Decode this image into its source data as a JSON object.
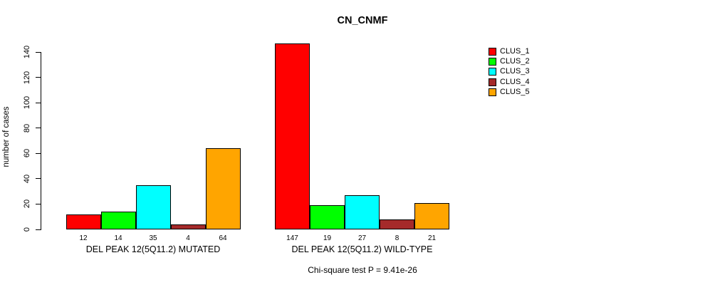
{
  "chart_data": {
    "type": "bar",
    "title": "CN_CNMF",
    "ylabel": "number of cases",
    "xlabel": "",
    "ylim": [
      0,
      140
    ],
    "ytick_step": 20,
    "grid": false,
    "legend_position": "top-right",
    "categories": [
      "DEL PEAK 12(5Q11.2) MUTATED",
      "DEL PEAK 12(5Q11.2) WILD-TYPE"
    ],
    "series": [
      {
        "name": "CLUS_1",
        "color": "#FF0000",
        "values": [
          12,
          147
        ]
      },
      {
        "name": "CLUS_2",
        "color": "#00FF00",
        "values": [
          14,
          19
        ]
      },
      {
        "name": "CLUS_3",
        "color": "#00FFFF",
        "values": [
          35,
          27
        ]
      },
      {
        "name": "CLUS_4",
        "color": "#A52A2A",
        "values": [
          4,
          8
        ]
      },
      {
        "name": "CLUS_5",
        "color": "#FFA500",
        "values": [
          64,
          21
        ]
      }
    ],
    "value_labels_shown": true,
    "annotation": "Chi-square test P = 9.41e-26"
  }
}
